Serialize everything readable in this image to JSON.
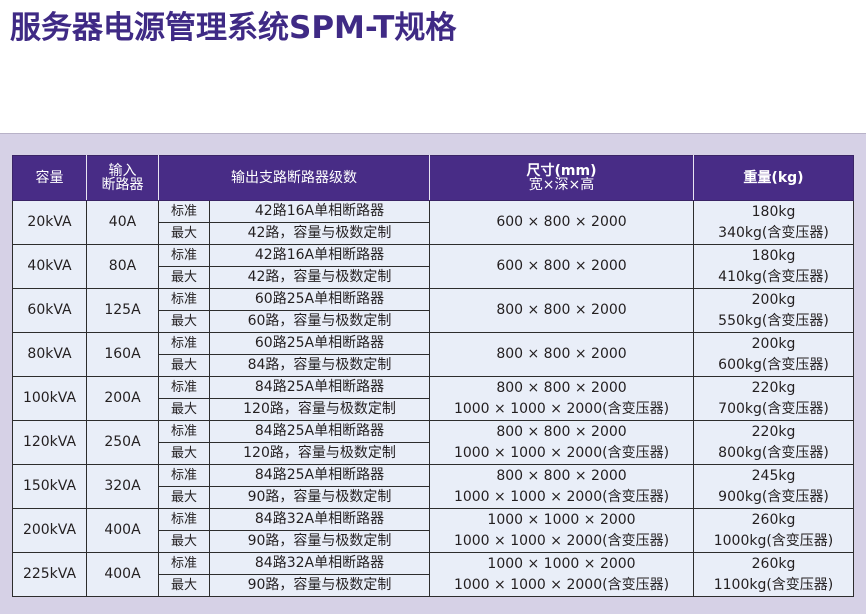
{
  "title": "服务器电源管理系统SPM-T规格",
  "table": {
    "headers": {
      "capacity": "容量",
      "input_breaker_l1": "输入",
      "input_breaker_l2": "断路器",
      "output_levels": "输出支路断路器级数",
      "size_l1": "尺寸(mm)",
      "size_l2": "宽×深×高",
      "weight": "重量(kg)"
    },
    "std_label": "标准",
    "max_label": "最大",
    "rows": [
      {
        "capacity": "20kVA",
        "breaker": "40A",
        "std": "42路16A单相断路器",
        "max": "42路，容量与极数定制",
        "size1": "600 × 800 × 2000",
        "size2": "",
        "w1": "180kg",
        "w2": "340kg(含变压器)"
      },
      {
        "capacity": "40kVA",
        "breaker": "80A",
        "std": "42路16A单相断路器",
        "max": "42路，容量与极数定制",
        "size1": "600 × 800 × 2000",
        "size2": "",
        "w1": "180kg",
        "w2": "410kg(含变压器)"
      },
      {
        "capacity": "60kVA",
        "breaker": "125A",
        "std": "60路25A单相断路器",
        "max": "60路，容量与极数定制",
        "size1": "800 × 800 × 2000",
        "size2": "",
        "w1": "200kg",
        "w2": "550kg(含变压器)"
      },
      {
        "capacity": "80kVA",
        "breaker": "160A",
        "std": "60路25A单相断路器",
        "max": "84路，容量与极数定制",
        "size1": "800 × 800 × 2000",
        "size2": "",
        "w1": "200kg",
        "w2": "600kg(含变压器)"
      },
      {
        "capacity": "100kVA",
        "breaker": "200A",
        "std": "84路25A单相断路器",
        "max": "120路，容量与极数定制",
        "size1": "800 × 800 × 2000",
        "size2": "1000 × 1000 × 2000(含变压器)",
        "w1": "220kg",
        "w2": "700kg(含变压器)"
      },
      {
        "capacity": "120kVA",
        "breaker": "250A",
        "std": "84路25A单相断路器",
        "max": "120路，容量与极数定制",
        "size1": "800 × 800 × 2000",
        "size2": "1000 × 1000 × 2000(含变压器)",
        "w1": "220kg",
        "w2": "800kg(含变压器)"
      },
      {
        "capacity": "150kVA",
        "breaker": "320A",
        "std": "84路25A单相断路器",
        "max": "90路，容量与极数定制",
        "size1": "800 × 800 × 2000",
        "size2": "1000 × 1000 × 2000(含变压器)",
        "w1": "245kg",
        "w2": "900kg(含变压器)"
      },
      {
        "capacity": "200kVA",
        "breaker": "400A",
        "std": "84路32A单相断路器",
        "max": "90路，容量与极数定制",
        "size1": "1000 × 1000 × 2000",
        "size2": "1000 × 1000 × 2000(含变压器)",
        "w1": "260kg",
        "w2": "1000kg(含变压器)"
      },
      {
        "capacity": "225kVA",
        "breaker": "400A",
        "std": "84路32A单相断路器",
        "max": "90路，容量与极数定制",
        "size1": "1000 × 1000 × 2000",
        "size2": "1000 × 1000 × 2000(含变压器)",
        "w1": "260kg",
        "w2": "1100kg(含变压器)"
      }
    ]
  }
}
